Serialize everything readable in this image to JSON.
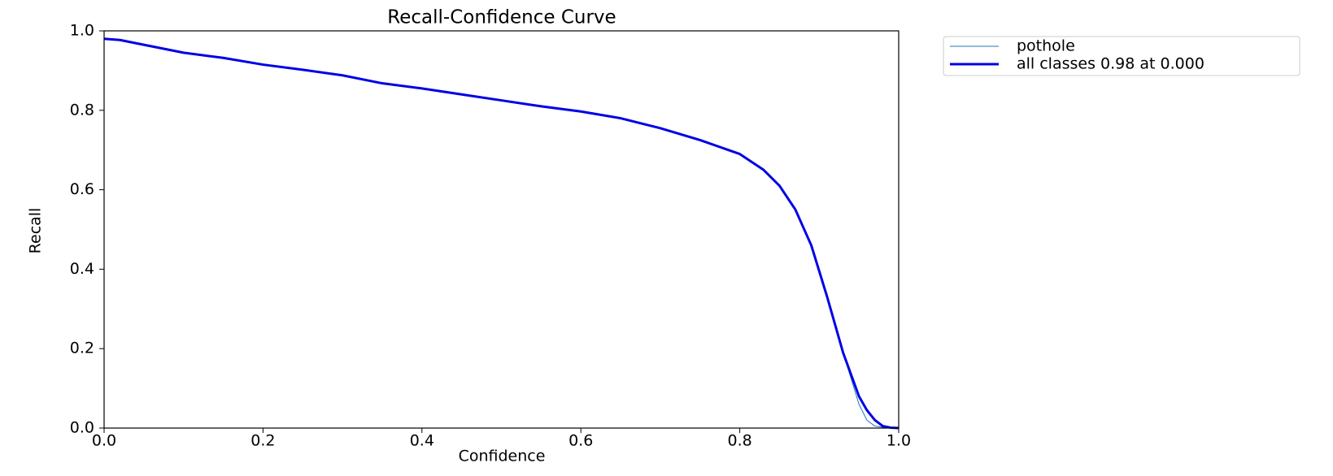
{
  "chart_data": {
    "type": "line",
    "title": "Recall-Confidence Curve",
    "xlabel": "Confidence",
    "ylabel": "Recall",
    "x": [
      0,
      0.02,
      0.05,
      0.1,
      0.15,
      0.2,
      0.25,
      0.3,
      0.35,
      0.4,
      0.45,
      0.5,
      0.55,
      0.6,
      0.65,
      0.7,
      0.75,
      0.8,
      0.83,
      0.85,
      0.87,
      0.89,
      0.91,
      0.93,
      0.95,
      0.96,
      0.97,
      0.98,
      0.99,
      1.0
    ],
    "series": [
      {
        "name": "pothole",
        "color": "#1f77b4",
        "width": 1,
        "values": [
          0.98,
          0.977,
          0.965,
          0.945,
          0.932,
          0.915,
          0.902,
          0.888,
          0.868,
          0.855,
          0.84,
          0.825,
          0.81,
          0.797,
          0.78,
          0.755,
          0.725,
          0.69,
          0.65,
          0.61,
          0.55,
          0.46,
          0.33,
          0.19,
          0.06,
          0.02,
          0.005,
          0.002,
          0.001,
          0
        ]
      },
      {
        "name": "all classes 0.98 at 0.000",
        "color": "#0000e6",
        "width": 3,
        "values": [
          0.98,
          0.977,
          0.965,
          0.945,
          0.932,
          0.915,
          0.902,
          0.888,
          0.868,
          0.855,
          0.84,
          0.825,
          0.81,
          0.797,
          0.78,
          0.755,
          0.725,
          0.69,
          0.65,
          0.61,
          0.55,
          0.46,
          0.33,
          0.19,
          0.08,
          0.045,
          0.02,
          0.005,
          0.001,
          0
        ]
      }
    ],
    "xlim": [
      0,
      1
    ],
    "ylim": [
      0,
      1
    ],
    "xticks": [
      {
        "value": 0,
        "label": "0.0"
      },
      0.2,
      0.4,
      0.6,
      0.8,
      {
        "value": 1,
        "label": "1.0"
      }
    ],
    "yticks": [
      {
        "value": 0,
        "label": "0.0"
      },
      0.2,
      0.4,
      0.6,
      0.8,
      {
        "value": 1,
        "label": "1.0"
      }
    ],
    "grid": false,
    "legend": "outside upper right"
  }
}
